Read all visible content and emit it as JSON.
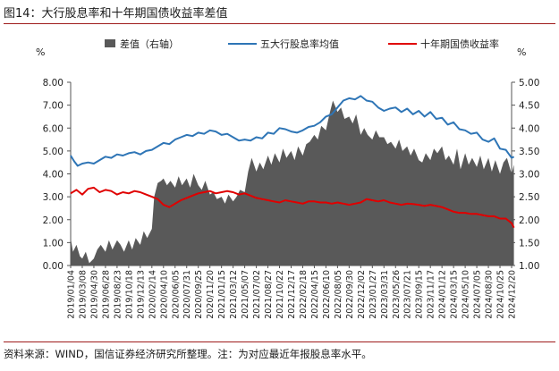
{
  "figure": {
    "title": "图14：大行股息率和十年期国债收益率差值",
    "source": "资料来源：WIND，国信证券经济研究所整理。注：为对应最近年报股息率水平。"
  },
  "colors": {
    "spread": "#595959",
    "dividend": "#2e75b6",
    "bond": "#e00000",
    "rule": "#9e1b1b"
  },
  "chart_data": {
    "type": "line",
    "left_axis_unit": "%",
    "right_axis_unit": "%",
    "ylim_left": [
      0,
      8
    ],
    "ylim_right": [
      1,
      5
    ],
    "left_ticks": [
      "8.00",
      "7.00",
      "6.00",
      "5.00",
      "4.00",
      "3.00",
      "2.00",
      "1.00",
      "0.00"
    ],
    "right_ticks": [
      "5.00",
      "4.50",
      "4.00",
      "3.50",
      "3.00",
      "2.50",
      "2.00",
      "1.50",
      "1.00"
    ],
    "x_tick_labels": [
      "2019/01/04",
      "2019/03/08",
      "2019/04/30",
      "2019/06/28",
      "2019/08/23",
      "2019/10/18",
      "2019/12/13",
      "2020/02/14",
      "2020/04/10",
      "2020/06/05",
      "2020/07/31",
      "2020/09/25",
      "2020/11/20",
      "2021/01/15",
      "2021/03/12",
      "2021/05/07",
      "2021/07/02",
      "2021/08/27",
      "2021/10/22",
      "2021/12/17",
      "2022/02/18",
      "2022/04/15",
      "2022/06/10",
      "2022/08/05",
      "2022/09/30",
      "2022/12/02",
      "2023/01/27",
      "2023/03/31",
      "2023/05/26",
      "2023/07/21",
      "2023/09/15",
      "2023/11/17",
      "2024/01/12",
      "2024/03/15",
      "2024/05/10",
      "2024/07/05",
      "2024/08/30",
      "2024/10/25",
      "2024/12/20"
    ],
    "legend": [
      "差值（右轴）",
      "五大行股息率均值",
      "十年期国债收益率"
    ],
    "series": [
      {
        "name": "差值（右轴）",
        "axis": "right",
        "chart_type": "area",
        "x": [
          0,
          0.2,
          0.5,
          0.8,
          1,
          1.3,
          1.6,
          2,
          2.3,
          2.6,
          3,
          3.3,
          3.6,
          4,
          4.3,
          4.6,
          5,
          5.3,
          5.6,
          6,
          6.3,
          6.6,
          7,
          7.2,
          7.5,
          7.8,
          8,
          8.3,
          8.6,
          9,
          9.3,
          9.6,
          10,
          10.3,
          10.6,
          11,
          11.3,
          11.6,
          12,
          12.3,
          12.6,
          13,
          13.3,
          13.6,
          14,
          14.3,
          14.6,
          15,
          15.3,
          15.6,
          16,
          16.3,
          16.6,
          17,
          17.3,
          17.6,
          18,
          18.3,
          18.6,
          19,
          19.3,
          19.6,
          20,
          20.3,
          20.6,
          21,
          21.3,
          21.6,
          22,
          22.3,
          22.6,
          23,
          23.3,
          23.6,
          24,
          24.3,
          24.6,
          25,
          25.3,
          25.6,
          26,
          26.3,
          26.6,
          27,
          27.3,
          27.6,
          28,
          28.3,
          28.6,
          29,
          29.3,
          29.6,
          30,
          30.3,
          30.6,
          31,
          31.3,
          31.6,
          32,
          32.3,
          32.6,
          33,
          33.3,
          33.6,
          34,
          34.3,
          34.6,
          35,
          35.3,
          35.6,
          36,
          36.3,
          36.6,
          37,
          37.3,
          37.6,
          38,
          38.2
        ],
        "values": [
          1.6,
          1.3,
          1.45,
          1.2,
          1.15,
          1.3,
          1.05,
          1.15,
          1.35,
          1.45,
          1.3,
          1.55,
          1.35,
          1.55,
          1.45,
          1.3,
          1.55,
          1.35,
          1.6,
          1.45,
          1.75,
          1.6,
          1.8,
          2.5,
          2.8,
          2.85,
          2.9,
          2.75,
          2.85,
          2.7,
          2.95,
          2.75,
          2.9,
          2.7,
          3.0,
          2.75,
          2.65,
          2.85,
          2.55,
          2.6,
          2.45,
          2.5,
          2.35,
          2.55,
          2.4,
          2.5,
          2.65,
          2.6,
          3.05,
          3.35,
          3.05,
          3.25,
          3.1,
          3.4,
          3.2,
          3.45,
          3.25,
          3.55,
          3.35,
          3.5,
          3.3,
          3.6,
          3.4,
          3.65,
          3.7,
          3.85,
          3.75,
          4.05,
          3.95,
          4.3,
          4.6,
          4.35,
          4.45,
          4.2,
          4.25,
          4.1,
          4.3,
          3.85,
          4.0,
          3.85,
          3.75,
          3.95,
          3.8,
          3.8,
          3.65,
          3.7,
          3.55,
          3.75,
          3.5,
          3.6,
          3.4,
          3.55,
          3.3,
          3.25,
          3.45,
          3.3,
          3.55,
          3.45,
          3.6,
          3.3,
          3.4,
          3.2,
          3.55,
          3.1,
          3.45,
          3.2,
          3.35,
          3.15,
          3.4,
          3.1,
          3.35,
          3.05,
          3.3,
          3.0,
          3.25,
          3.35,
          3.0,
          3.2
        ]
      },
      {
        "name": "五大行股息率均值",
        "axis": "left",
        "chart_type": "line",
        "x": [
          0,
          0.3,
          0.6,
          1,
          1.5,
          2,
          2.5,
          3,
          3.5,
          4,
          4.5,
          5,
          5.5,
          6,
          6.5,
          7,
          7.5,
          8,
          8.5,
          9,
          9.5,
          10,
          10.5,
          11,
          11.5,
          12,
          12.5,
          13,
          13.5,
          14,
          14.5,
          15,
          15.5,
          16,
          16.5,
          17,
          17.5,
          18,
          18.5,
          19,
          19.5,
          20,
          20.5,
          21,
          21.5,
          22,
          22.5,
          23,
          23.5,
          24,
          24.5,
          25,
          25.5,
          26,
          26.5,
          27,
          27.5,
          28,
          28.5,
          29,
          29.5,
          30,
          30.5,
          31,
          31.5,
          32,
          32.5,
          33,
          33.5,
          34,
          34.5,
          35,
          35.5,
          36,
          36.5,
          37,
          37.5,
          38,
          38.2
        ],
        "values": [
          4.8,
          4.55,
          4.35,
          4.45,
          4.5,
          4.45,
          4.6,
          4.75,
          4.7,
          4.85,
          4.8,
          4.9,
          4.95,
          4.85,
          5.0,
          5.05,
          5.2,
          5.35,
          5.3,
          5.5,
          5.6,
          5.7,
          5.65,
          5.8,
          5.75,
          5.9,
          5.85,
          5.7,
          5.75,
          5.6,
          5.45,
          5.5,
          5.45,
          5.6,
          5.55,
          5.8,
          5.75,
          6.0,
          5.95,
          5.85,
          5.8,
          5.9,
          6.05,
          6.1,
          6.25,
          6.5,
          6.6,
          6.9,
          7.2,
          7.3,
          7.25,
          7.4,
          7.2,
          7.15,
          6.9,
          6.75,
          6.85,
          6.9,
          6.7,
          6.85,
          6.6,
          6.75,
          6.5,
          6.7,
          6.4,
          6.45,
          6.15,
          6.25,
          5.95,
          5.9,
          5.75,
          5.8,
          5.5,
          5.4,
          5.55,
          5.1,
          5.05,
          4.7,
          4.75
        ]
      },
      {
        "name": "十年期国债收益率",
        "axis": "left",
        "chart_type": "line",
        "x": [
          0,
          0.5,
          1,
          1.5,
          2,
          2.5,
          3,
          3.5,
          4,
          4.5,
          5,
          5.5,
          6,
          6.5,
          7,
          7.5,
          8,
          8.5,
          9,
          9.5,
          10,
          10.5,
          11,
          11.5,
          12,
          12.5,
          13,
          13.5,
          14,
          14.5,
          15,
          15.5,
          16,
          16.5,
          17,
          17.5,
          18,
          18.5,
          19,
          19.5,
          20,
          20.5,
          21,
          21.5,
          22,
          22.5,
          23,
          23.5,
          24,
          24.5,
          25,
          25.5,
          26,
          26.5,
          27,
          27.5,
          28,
          28.5,
          29,
          29.5,
          30,
          30.5,
          31,
          31.5,
          32,
          32.5,
          33,
          33.5,
          34,
          34.5,
          35,
          35.5,
          36,
          36.5,
          37,
          37.5,
          38,
          38.2
        ],
        "values": [
          3.15,
          3.3,
          3.1,
          3.35,
          3.4,
          3.2,
          3.3,
          3.25,
          3.1,
          3.2,
          3.15,
          3.25,
          3.2,
          3.1,
          3.0,
          2.9,
          2.65,
          2.55,
          2.7,
          2.85,
          2.95,
          3.05,
          3.15,
          3.2,
          3.25,
          3.15,
          3.2,
          3.25,
          3.2,
          3.1,
          3.15,
          3.05,
          2.95,
          2.9,
          2.85,
          2.8,
          2.75,
          2.85,
          2.8,
          2.75,
          2.7,
          2.8,
          2.8,
          2.75,
          2.75,
          2.7,
          2.75,
          2.7,
          2.65,
          2.7,
          2.75,
          2.9,
          2.85,
          2.8,
          2.85,
          2.75,
          2.7,
          2.65,
          2.7,
          2.68,
          2.65,
          2.6,
          2.65,
          2.6,
          2.55,
          2.45,
          2.35,
          2.3,
          2.3,
          2.25,
          2.25,
          2.2,
          2.15,
          2.15,
          2.05,
          2.05,
          1.85,
          1.65
        ]
      }
    ]
  }
}
